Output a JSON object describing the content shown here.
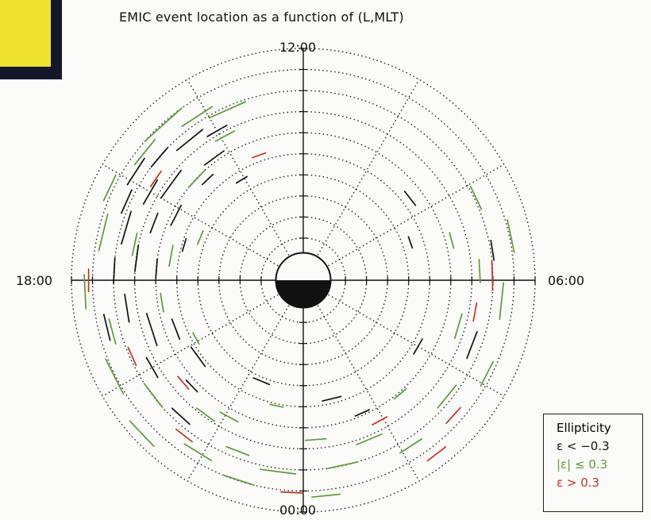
{
  "title": "EMIC event location as a function of (L,MLT)",
  "mlt_labels": {
    "noon": "12:00",
    "dusk": "18:00",
    "dawn": "06:00",
    "midnight": "00:00"
  },
  "legend": {
    "title": "Ellipticity",
    "items": [
      {
        "label": "ε < −0.3",
        "color": "#111111"
      },
      {
        "label": "|ε| ≤ 0.3",
        "color": "#5f9a3a"
      },
      {
        "label": "ε > 0.3",
        "color": "#c4321f"
      }
    ]
  },
  "colors": {
    "neg": "#111111",
    "lin": "#5f9a3a",
    "pos": "#c4321f",
    "grid": "#222222"
  },
  "chart_data": {
    "type": "scatter",
    "title": "EMIC event location as a function of (L,MLT)",
    "coordinates": "polar (L, MLT)",
    "r_grid_L": [
      1,
      2,
      3,
      4,
      5,
      6,
      7,
      8,
      9,
      10,
      11
    ],
    "mlt_grid_step_hours": 2,
    "earth_disk_L": 1,
    "legend_placement": "bottom-right",
    "series": [
      {
        "name": "ε < −0.3",
        "color": "#111111",
        "events": [
          {
            "L": 9.5,
            "mlt": 15.8,
            "len": 0.6
          },
          {
            "L": 9.0,
            "mlt": 15.3,
            "len": 0.5
          },
          {
            "L": 8.6,
            "mlt": 14.6,
            "len": 0.7
          },
          {
            "L": 8.2,
            "mlt": 14.0,
            "len": 0.5
          },
          {
            "L": 7.2,
            "mlt": 14.4,
            "len": 0.6
          },
          {
            "L": 6.6,
            "mlt": 14.9,
            "len": 0.4
          },
          {
            "L": 7.8,
            "mlt": 15.6,
            "len": 0.8
          },
          {
            "L": 8.4,
            "mlt": 16.0,
            "len": 0.6
          },
          {
            "L": 9.2,
            "mlt": 16.4,
            "len": 0.5
          },
          {
            "L": 8.8,
            "mlt": 16.9,
            "len": 0.7
          },
          {
            "L": 7.6,
            "mlt": 16.6,
            "len": 0.5
          },
          {
            "L": 6.8,
            "mlt": 16.2,
            "len": 0.6
          },
          {
            "L": 5.9,
            "mlt": 16.9,
            "len": 0.4
          },
          {
            "L": 8.0,
            "mlt": 17.5,
            "len": 0.6
          },
          {
            "L": 9.0,
            "mlt": 17.8,
            "len": 0.5
          },
          {
            "L": 7.0,
            "mlt": 17.7,
            "len": 0.5
          },
          {
            "L": 8.5,
            "mlt": 18.6,
            "len": 0.6
          },
          {
            "L": 7.6,
            "mlt": 19.2,
            "len": 0.8
          },
          {
            "L": 6.5,
            "mlt": 19.4,
            "len": 0.6
          },
          {
            "L": 8.3,
            "mlt": 20.0,
            "len": 0.5
          },
          {
            "L": 6.2,
            "mlt": 20.4,
            "len": 0.7
          },
          {
            "L": 7.3,
            "mlt": 20.9,
            "len": 0.4
          },
          {
            "L": 8.7,
            "mlt": 21.2,
            "len": 0.5
          },
          {
            "L": 5.2,
            "mlt": 22.5,
            "len": 0.6
          },
          {
            "L": 5.8,
            "mlt": 0.9,
            "len": 0.6
          },
          {
            "L": 6.9,
            "mlt": 1.6,
            "len": 0.4
          },
          {
            "L": 6.3,
            "mlt": 4.0,
            "len": 0.5
          },
          {
            "L": 8.6,
            "mlt": 4.6,
            "len": 0.6
          },
          {
            "L": 5.4,
            "mlt": 7.3,
            "len": 0.4
          },
          {
            "L": 6.4,
            "mlt": 8.5,
            "len": 0.5
          },
          {
            "L": 9.1,
            "mlt": 6.6,
            "len": 0.4
          },
          {
            "L": 5.6,
            "mlt": 14.1,
            "len": 0.4
          },
          {
            "L": 9.6,
            "mlt": 18.9,
            "len": 0.5
          }
        ]
      },
      {
        "name": "|ε| ≤ 0.3",
        "color": "#5f9a3a",
        "events": [
          {
            "L": 10.0,
            "mlt": 14.8,
            "len": 0.9
          },
          {
            "L": 9.7,
            "mlt": 15.4,
            "len": 0.6
          },
          {
            "L": 9.3,
            "mlt": 14.2,
            "len": 0.7
          },
          {
            "L": 8.9,
            "mlt": 13.6,
            "len": 0.8
          },
          {
            "L": 7.8,
            "mlt": 13.9,
            "len": 0.5
          },
          {
            "L": 7.0,
            "mlt": 15.1,
            "len": 0.6
          },
          {
            "L": 10.2,
            "mlt": 16.3,
            "len": 0.5
          },
          {
            "L": 9.8,
            "mlt": 17.1,
            "len": 0.7
          },
          {
            "L": 8.2,
            "mlt": 17.2,
            "len": 0.5
          },
          {
            "L": 6.4,
            "mlt": 17.3,
            "len": 0.6
          },
          {
            "L": 5.3,
            "mlt": 16.5,
            "len": 0.5
          },
          {
            "L": 10.4,
            "mlt": 18.2,
            "len": 0.6
          },
          {
            "L": 9.4,
            "mlt": 19.0,
            "len": 0.5
          },
          {
            "L": 10.1,
            "mlt": 19.8,
            "len": 0.7
          },
          {
            "L": 9.0,
            "mlt": 20.5,
            "len": 0.6
          },
          {
            "L": 7.9,
            "mlt": 21.6,
            "len": 0.5
          },
          {
            "L": 9.6,
            "mlt": 21.9,
            "len": 0.6
          },
          {
            "L": 8.7,
            "mlt": 22.6,
            "len": 0.5
          },
          {
            "L": 10.0,
            "mlt": 22.8,
            "len": 0.6
          },
          {
            "L": 9.2,
            "mlt": 23.5,
            "len": 0.7
          },
          {
            "L": 10.3,
            "mlt": 0.4,
            "len": 0.5
          },
          {
            "L": 9.0,
            "mlt": 0.8,
            "len": 0.6
          },
          {
            "L": 7.6,
            "mlt": 0.3,
            "len": 0.5
          },
          {
            "L": 8.2,
            "mlt": 1.5,
            "len": 0.6
          },
          {
            "L": 9.4,
            "mlt": 2.2,
            "len": 0.5
          },
          {
            "L": 7.1,
            "mlt": 2.7,
            "len": 0.4
          },
          {
            "L": 8.8,
            "mlt": 3.4,
            "len": 0.6
          },
          {
            "L": 9.8,
            "mlt": 4.2,
            "len": 0.5
          },
          {
            "L": 7.7,
            "mlt": 4.9,
            "len": 0.6
          },
          {
            "L": 9.5,
            "mlt": 5.6,
            "len": 0.7
          },
          {
            "L": 8.4,
            "mlt": 6.2,
            "len": 0.5
          },
          {
            "L": 10.1,
            "mlt": 6.8,
            "len": 0.6
          },
          {
            "L": 7.3,
            "mlt": 7.0,
            "len": 0.4
          },
          {
            "L": 9.1,
            "mlt": 7.7,
            "len": 0.5
          },
          {
            "L": 6.8,
            "mlt": 18.6,
            "len": 0.5
          },
          {
            "L": 5.8,
            "mlt": 19.9,
            "len": 0.4
          },
          {
            "L": 7.4,
            "mlt": 22.1,
            "len": 0.5
          },
          {
            "L": 6.1,
            "mlt": 23.2,
            "len": 0.4
          },
          {
            "L": 10.6,
            "mlt": 20.9,
            "len": 0.6
          }
        ]
      },
      {
        "name": "ε > 0.3",
        "color": "#c4321f",
        "events": [
          {
            "L": 8.5,
            "mlt": 15.7,
            "len": 0.4
          },
          {
            "L": 6.3,
            "mlt": 13.3,
            "len": 0.4
          },
          {
            "L": 10.2,
            "mlt": 18.0,
            "len": 0.4
          },
          {
            "L": 8.9,
            "mlt": 19.6,
            "len": 0.4
          },
          {
            "L": 7.5,
            "mlt": 20.7,
            "len": 0.4
          },
          {
            "L": 9.3,
            "mlt": 21.5,
            "len": 0.4
          },
          {
            "L": 10.1,
            "mlt": 23.8,
            "len": 0.4
          },
          {
            "L": 7.6,
            "mlt": 1.9,
            "len": 0.4
          },
          {
            "L": 9.6,
            "mlt": 3.2,
            "len": 0.4
          },
          {
            "L": 8.3,
            "mlt": 5.3,
            "len": 0.4
          },
          {
            "L": 9.0,
            "mlt": 6.1,
            "len": 0.6
          },
          {
            "L": 10.4,
            "mlt": 2.5,
            "len": 0.4
          }
        ]
      }
    ]
  }
}
